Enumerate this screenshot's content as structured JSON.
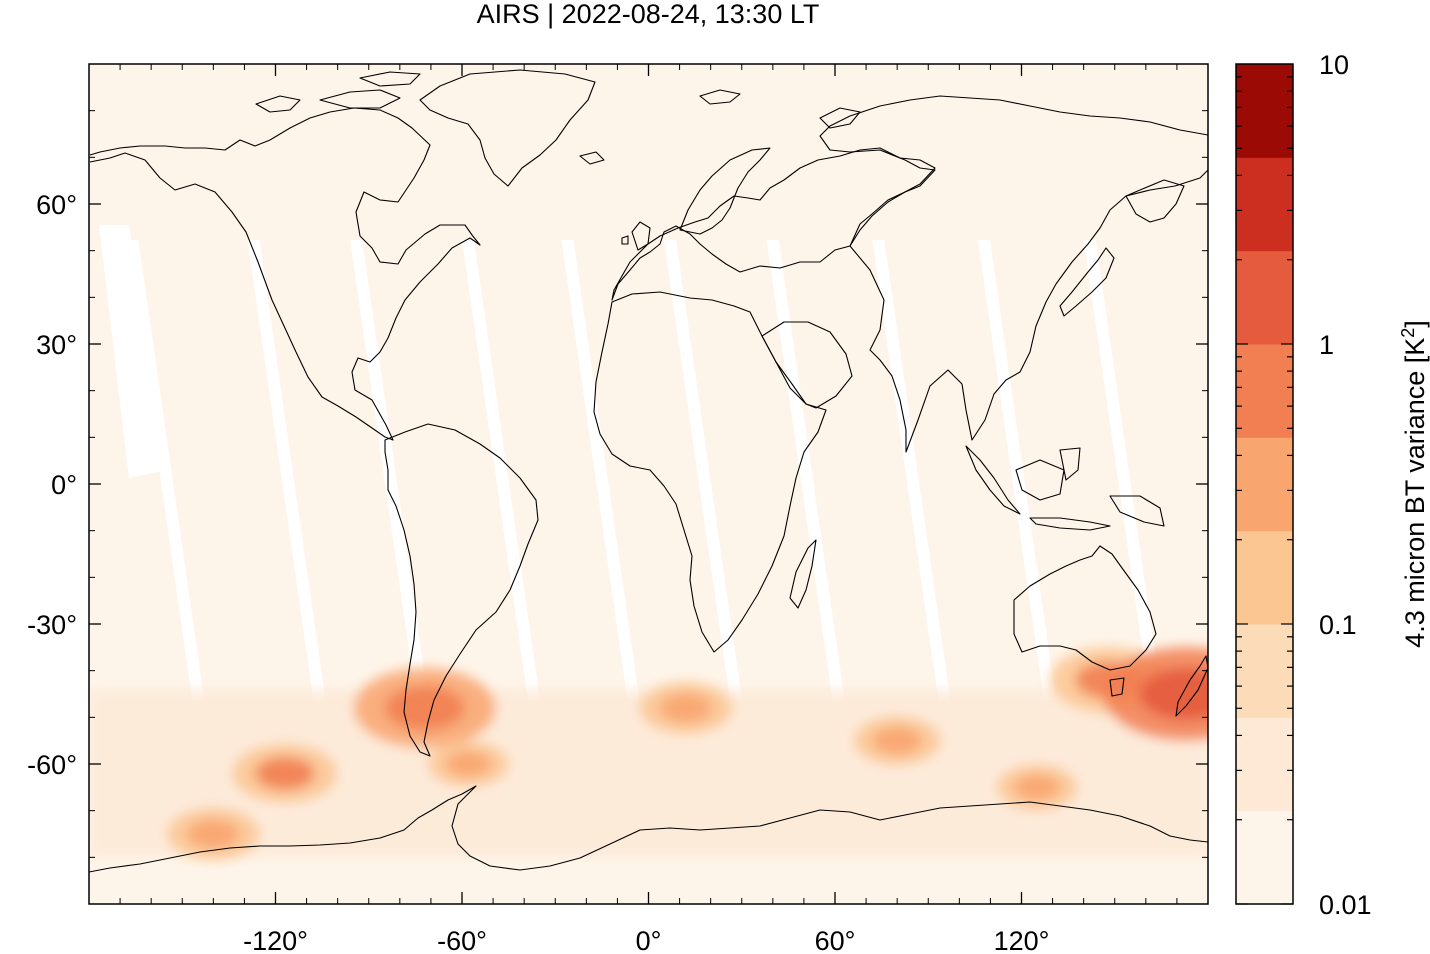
{
  "title": "AIRS | 2022-08-24, 13:30 LT",
  "map": {
    "projection": "equirectangular",
    "lon_range": [
      -180,
      180
    ],
    "lat_range": [
      -90,
      90
    ],
    "x_tick_values": [
      -120,
      -60,
      0,
      60,
      120
    ],
    "x_tick_labels": [
      "-120°",
      "-60°",
      "0°",
      "60°",
      "120°"
    ],
    "y_tick_values": [
      60,
      30,
      0,
      -30,
      -60
    ],
    "y_tick_labels": [
      "60°",
      "30°",
      "0°",
      "-30°",
      "-60°"
    ],
    "background_color": "#fef5ea",
    "gap_color": "#ffffff",
    "coastline_color": "#000000"
  },
  "colorbar": {
    "label": "4.3 micron BT variance [K²]",
    "label_base": "4.3 micron BT variance [K",
    "label_sup": "2",
    "label_close": "]",
    "scale": "log",
    "tick_labels": [
      "10",
      "1",
      "0.1",
      "0.01"
    ],
    "tick_values": [
      10,
      1,
      0.1,
      0.01
    ],
    "range": [
      0.01,
      10
    ],
    "colors": [
      "#fef5ea",
      "#fde9d6",
      "#fcdcb8",
      "#fbc692",
      "#f9a56f",
      "#f27f52",
      "#e45b3e",
      "#cc2f1f",
      "#9c0a05"
    ]
  },
  "chart_data": {
    "type": "heatmap",
    "title": "AIRS | 2022-08-24, 13:30 LT",
    "variable": "4.3 micron BT variance [K²]",
    "xlim": [
      -180,
      180
    ],
    "ylim": [
      -90,
      90
    ],
    "zlim": [
      0.01,
      10
    ],
    "z_scale": "log",
    "hotspots": [
      {
        "region": "Southern Patagonia / Andes",
        "lon": -72,
        "lat": -48,
        "level": 0.8
      },
      {
        "region": "Drake Passage / Antarctic Peninsula",
        "lon": -58,
        "lat": -60,
        "level": 0.3
      },
      {
        "region": "South Pacific",
        "lon": -117,
        "lat": -62,
        "level": 0.5
      },
      {
        "region": "Southern Ocean near Ross Sea",
        "lon": -140,
        "lat": -75,
        "level": 0.4
      },
      {
        "region": "South Atlantic",
        "lon": 12,
        "lat": -48,
        "level": 0.4
      },
      {
        "region": "Southern Indian Ocean",
        "lon": 80,
        "lat": -55,
        "level": 0.35
      },
      {
        "region": "Southern Ocean south of Australia",
        "lon": 125,
        "lat": -65,
        "level": 0.3
      },
      {
        "region": "Tasmania",
        "lon": 148,
        "lat": -42,
        "level": 0.6
      },
      {
        "region": "New Zealand",
        "lon": 173,
        "lat": -45,
        "level": 2.0
      }
    ]
  }
}
